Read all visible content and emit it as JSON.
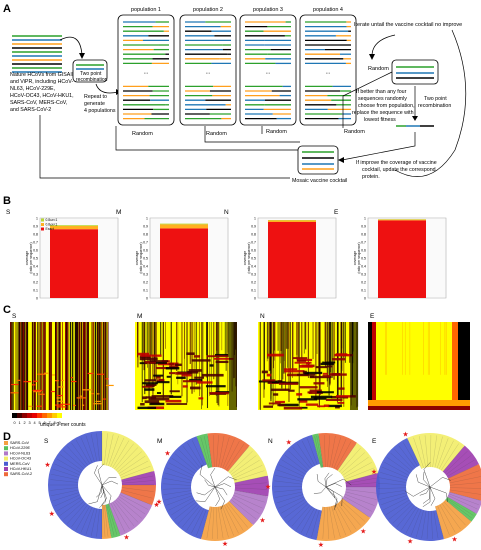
{
  "panels": {
    "A": {
      "letter": "A",
      "populations": [
        "population 1",
        "population 2",
        "population 3",
        "population 4"
      ],
      "dots": "...",
      "source_text": [
        "Nature HCoVs from GISAID",
        "and ViPR, including HCoV-",
        "NL63, HCoV-229E,",
        "HCoV-OC43, HCoV-HKU1,",
        "SARS-CoV, MERS-CoV,",
        "and SARS-CoV-2"
      ],
      "two_point_recombination": [
        "Two point",
        "recombination"
      ],
      "repeat": [
        "Repeat to",
        "generate",
        "4 populations"
      ],
      "random_label": "Random",
      "iterate": "Iterate untail the vaccine cocktail no improve",
      "better_text": [
        "If better than any four",
        "sequences randomly",
        "choose from population,",
        "replace the sequence with",
        "lowest fitness"
      ],
      "improve_text": [
        "If improve the coverage of  vaccine",
        "cocktail,  update the correspond",
        "protein."
      ],
      "mosaic_label": "Mosaic vaccine cocktail",
      "line_colors": [
        "#2ca02c",
        "#1f77b4",
        "#ff9f1c",
        "#000000"
      ]
    },
    "B": {
      "letter": "B",
      "legend": [
        "0.8≤x<1",
        "0.8≤x<1",
        "Exact"
      ],
      "ylabel": [
        "coverage",
        "(ratio per sequence)"
      ],
      "yticks": [
        "1",
        "0.9",
        "0.8",
        "0.7",
        "0.6",
        "0.5",
        "0.4",
        "0.3",
        "0.2",
        "0.1",
        "0"
      ],
      "colors": {
        "exact": "#ee1111",
        "near": "#ffb020",
        "mid": "#b8d836"
      }
    },
    "C": {
      "letter": "C",
      "colorbar_ticks": [
        "0",
        "1",
        "2",
        "3",
        "4",
        "5",
        "6",
        "7",
        "8",
        "9"
      ],
      "colorbar_label": "unique 9-mer counts"
    },
    "D": {
      "letter": "D",
      "legend": [
        {
          "label": "SARS-CoV",
          "color": "#f4a041"
        },
        {
          "label": "HCoV-229E",
          "color": "#59c15b"
        },
        {
          "label": "HCoV-NL63",
          "color": "#b178c8"
        },
        {
          "label": "HCoV-OC43",
          "color": "#f2ee6a"
        },
        {
          "label": "MERS-CoV",
          "color": "#4a5bd1"
        },
        {
          "label": "HCoV-HKU1",
          "color": "#9e3fb0"
        },
        {
          "label": "SARS-CoV-2",
          "color": "#ee6a3a"
        }
      ]
    }
  },
  "proteins": [
    "S",
    "M",
    "N",
    "E"
  ],
  "chart_data": [
    {
      "type": "bar",
      "panel": "B",
      "categories": [
        "S",
        "M",
        "N",
        "E"
      ],
      "series": [
        {
          "name": "Exact",
          "values": [
            0.86,
            0.87,
            0.95,
            0.97
          ]
        },
        {
          "name": "0.8≤x<1",
          "values": [
            0.04,
            0.05,
            0.02,
            0.01
          ]
        },
        {
          "name": "0.8≤x<1",
          "values": [
            0.01,
            0.01,
            0.005,
            0.005
          ]
        }
      ],
      "ylim": [
        0,
        1
      ],
      "stacked": true
    }
  ]
}
